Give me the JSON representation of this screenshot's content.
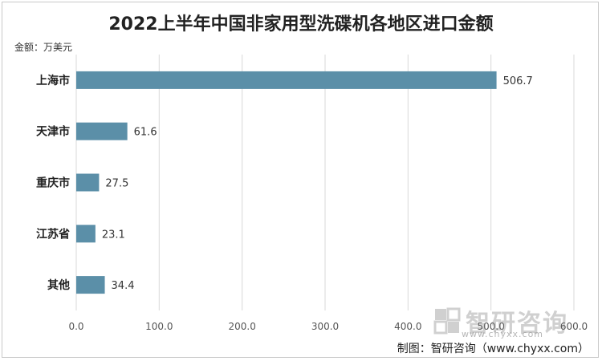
{
  "chart_data": {
    "type": "bar",
    "orientation": "horizontal",
    "title": "2022上半年中国非家用型洗碟机各地区进口金额",
    "unit_label": "金额：万美元",
    "categories": [
      "上海市",
      "天津市",
      "重庆市",
      "江苏省",
      "其他"
    ],
    "values": [
      506.7,
      61.6,
      27.5,
      23.1,
      34.4
    ],
    "value_labels": [
      "506.7",
      "61.6",
      "27.5",
      "23.1",
      "34.4"
    ],
    "xlim": [
      0,
      600
    ],
    "x_ticks": [
      0,
      100,
      200,
      300,
      400,
      500,
      600
    ],
    "x_tick_labels": [
      "0.0",
      "100.0",
      "200.0",
      "300.0",
      "400.0",
      "500.0",
      "600.0"
    ],
    "grid": "vertical",
    "bar_color": "#5b8fa8"
  },
  "watermark": {
    "brand": "智研咨询",
    "url": "www.chyxx.com"
  },
  "source": "制图：智研咨询（www.chyxx.com）"
}
